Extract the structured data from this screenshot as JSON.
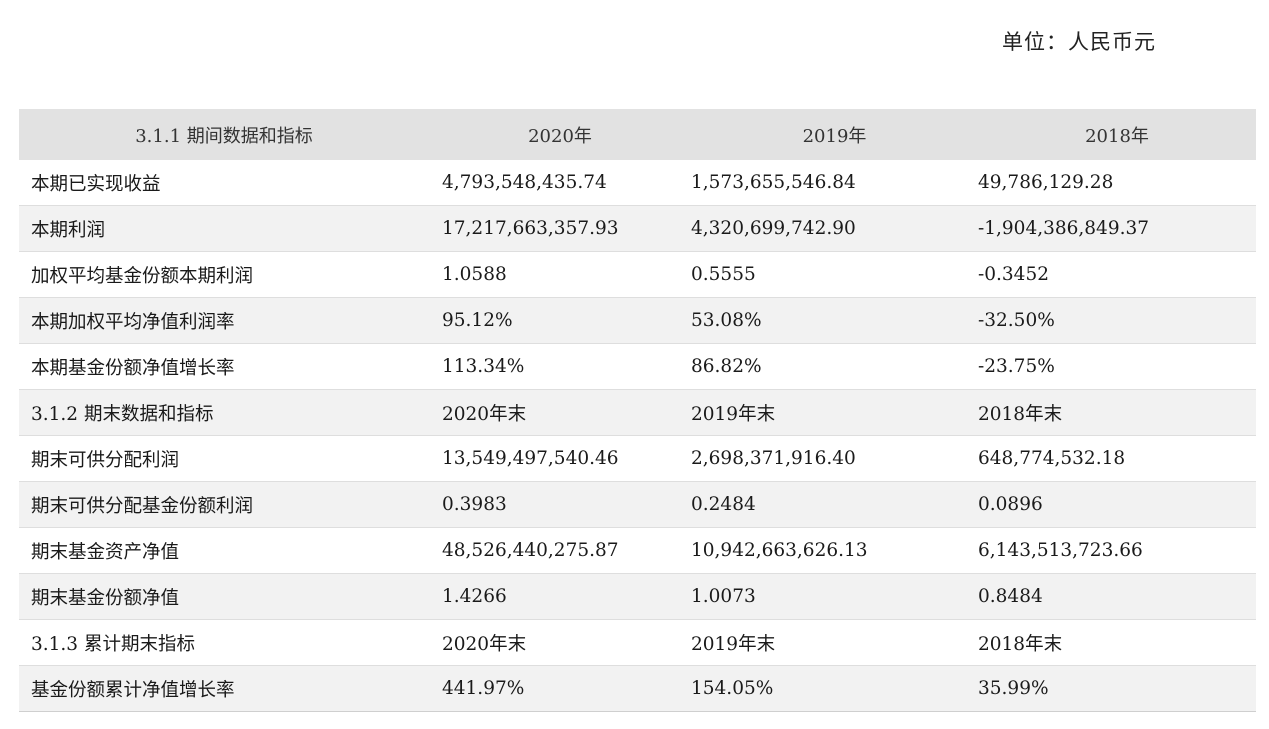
{
  "unit_label": "单位：人民币元",
  "header": {
    "col0": "3.1.1 期间数据和指标",
    "col1": "2020年",
    "col2": "2019年",
    "col3": "2018年"
  },
  "rows": [
    {
      "label": "本期已实现收益",
      "v2020": "4,793,548,435.74",
      "v2019": "1,573,655,546.84",
      "v2018": "49,786,129.28"
    },
    {
      "label": "本期利润",
      "v2020": "17,217,663,357.93",
      "v2019": "4,320,699,742.90",
      "v2018": "-1,904,386,849.37"
    },
    {
      "label": "加权平均基金份额本期利润",
      "v2020": "1.0588",
      "v2019": "0.5555",
      "v2018": "-0.3452"
    },
    {
      "label": "本期加权平均净值利润率",
      "v2020": "95.12%",
      "v2019": "53.08%",
      "v2018": "-32.50%"
    },
    {
      "label": "本期基金份额净值增长率",
      "v2020": "113.34%",
      "v2019": "86.82%",
      "v2018": "-23.75%"
    },
    {
      "label": "3.1.2 期末数据和指标",
      "v2020": "2020年末",
      "v2019": "2019年末",
      "v2018": "2018年末"
    },
    {
      "label": "期末可供分配利润",
      "v2020": "13,549,497,540.46",
      "v2019": "2,698,371,916.40",
      "v2018": "648,774,532.18"
    },
    {
      "label": "期末可供分配基金份额利润",
      "v2020": "0.3983",
      "v2019": "0.2484",
      "v2018": "0.0896"
    },
    {
      "label": "期末基金资产净值",
      "v2020": "48,526,440,275.87",
      "v2019": "10,942,663,626.13",
      "v2018": "6,143,513,723.66"
    },
    {
      "label": "期末基金份额净值",
      "v2020": "1.4266",
      "v2019": "1.0073",
      "v2018": "0.8484"
    },
    {
      "label": "3.1.3 累计期末指标",
      "v2020": "2020年末",
      "v2019": "2019年末",
      "v2018": "2018年末"
    },
    {
      "label": "基金份额累计净值增长率",
      "v2020": "441.97%",
      "v2019": "154.05%",
      "v2018": "35.99%"
    }
  ]
}
